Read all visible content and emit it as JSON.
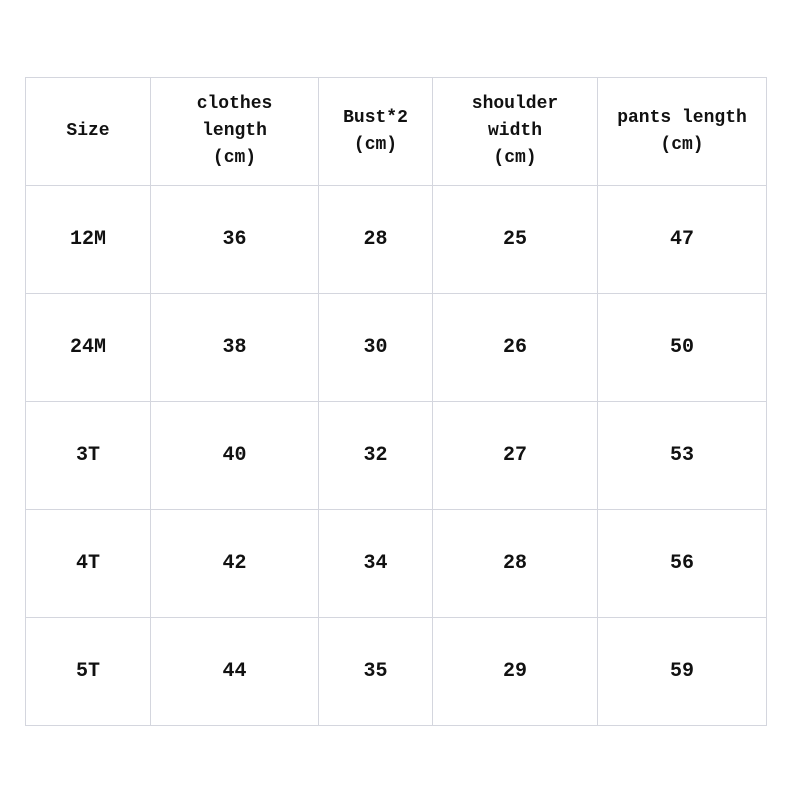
{
  "headers": [
    [
      "Size"
    ],
    [
      "clothes",
      "length",
      "(cm)"
    ],
    [
      "Bust*2",
      "(cm)"
    ],
    [
      "shoulder",
      "width",
      "(cm)"
    ],
    [
      "pants length",
      "(cm)"
    ]
  ],
  "rows": [
    [
      "12M",
      "36",
      "28",
      "25",
      "47"
    ],
    [
      "24M",
      "38",
      "30",
      "26",
      "50"
    ],
    [
      "3T",
      "40",
      "32",
      "27",
      "53"
    ],
    [
      "4T",
      "42",
      "34",
      "28",
      "56"
    ],
    [
      "5T",
      "44",
      "35",
      "29",
      "59"
    ]
  ]
}
